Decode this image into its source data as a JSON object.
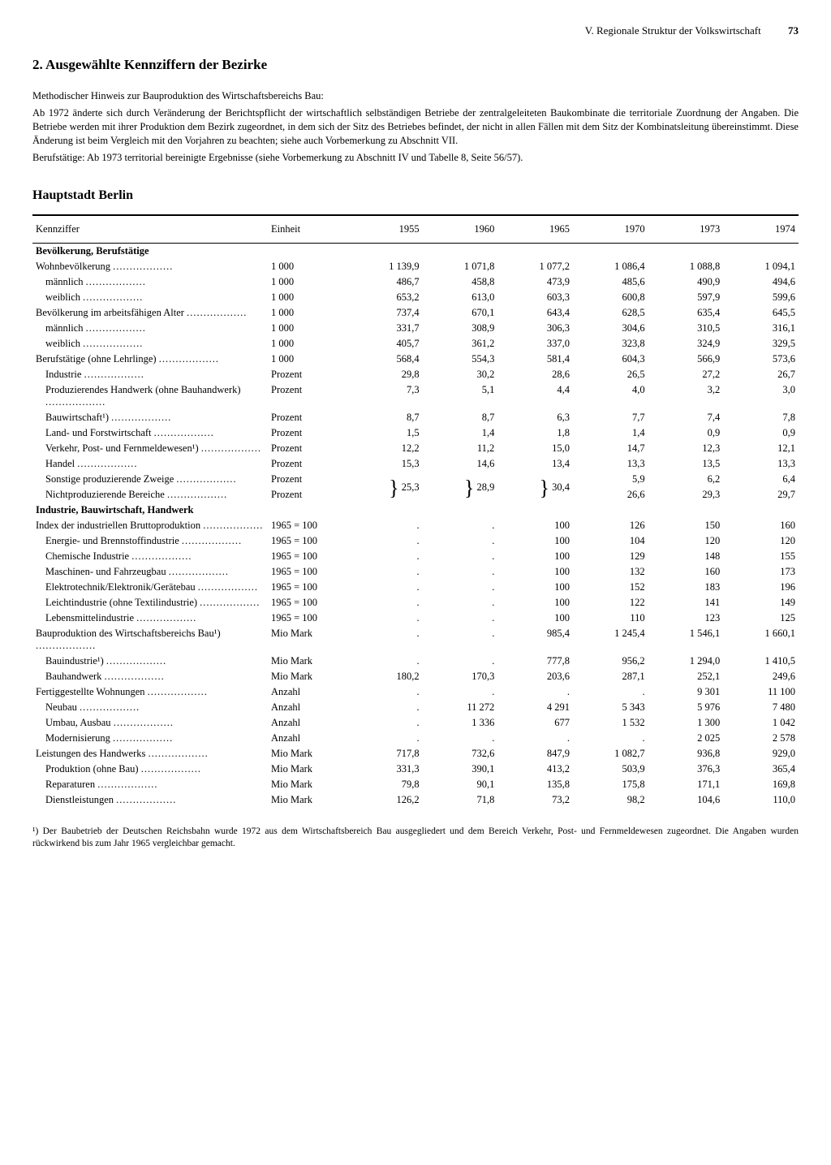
{
  "header": {
    "chapter": "V. Regionale Struktur der Volkswirtschaft",
    "page": "73"
  },
  "title": "2. Ausgewählte Kennziffern der Bezirke",
  "notes": [
    "Methodischer Hinweis zur Bauproduktion des Wirtschaftsbereichs Bau:",
    "Ab 1972 änderte sich durch Veränderung der Berichtspflicht der wirtschaftlich selbständigen Betriebe der zentralgeleiteten Baukombinate die territoriale Zuordnung der Angaben. Die Betriebe werden mit ihrer Produktion dem Bezirk zugeordnet, in dem sich der Sitz des Betriebes befindet, der nicht in allen Fällen mit dem Sitz der Kombinatsleitung übereinstimmt. Diese Änderung ist beim Vergleich mit den Vorjahren zu beachten; siehe auch Vorbemerkung zu Abschnitt VII.",
    "Berufstätige: Ab 1973 territorial bereinigte Ergebnisse (siehe Vorbemerkung zu Abschnitt IV und Tabelle 8, Seite 56/57)."
  ],
  "region": "Hauptstadt Berlin",
  "columns": [
    "Kennziffer",
    "Einheit",
    "1955",
    "1960",
    "1965",
    "1970",
    "1973",
    "1974"
  ],
  "groups": [
    {
      "title": "Bevölkerung, Berufstätige",
      "rows": [
        {
          "label": "Wohnbevölkerung",
          "unit": "1 000",
          "v": [
            "1 139,9",
            "1 071,8",
            "1 077,2",
            "1 086,4",
            "1 088,8",
            "1 094,1"
          ]
        },
        {
          "label": "männlich",
          "indent": 1,
          "unit": "1 000",
          "v": [
            "486,7",
            "458,8",
            "473,9",
            "485,6",
            "490,9",
            "494,6"
          ]
        },
        {
          "label": "weiblich",
          "indent": 1,
          "unit": "1 000",
          "v": [
            "653,2",
            "613,0",
            "603,3",
            "600,8",
            "597,9",
            "599,6"
          ]
        },
        {
          "label": "Bevölkerung im arbeitsfähigen Alter",
          "gap": true,
          "unit": "1 000",
          "v": [
            "737,4",
            "670,1",
            "643,4",
            "628,5",
            "635,4",
            "645,5"
          ]
        },
        {
          "label": "männlich",
          "indent": 1,
          "unit": "1 000",
          "v": [
            "331,7",
            "308,9",
            "306,3",
            "304,6",
            "310,5",
            "316,1"
          ]
        },
        {
          "label": "weiblich",
          "indent": 1,
          "unit": "1 000",
          "v": [
            "405,7",
            "361,2",
            "337,0",
            "323,8",
            "324,9",
            "329,5"
          ]
        },
        {
          "label": "Berufstätige (ohne Lehrlinge)",
          "gap": true,
          "unit": "1 000",
          "v": [
            "568,4",
            "554,3",
            "581,4",
            "604,3",
            "566,9",
            "573,6"
          ]
        },
        {
          "label": "Industrie",
          "indent": 1,
          "unit": "Prozent",
          "v": [
            "29,8",
            "30,2",
            "28,6",
            "26,5",
            "27,2",
            "26,7"
          ]
        },
        {
          "label": "Produzierendes Handwerk (ohne Bauhandwerk)",
          "indent": 1,
          "unit": "Prozent",
          "v": [
            "7,3",
            "5,1",
            "4,4",
            "4,0",
            "3,2",
            "3,0"
          ]
        },
        {
          "label": "Bauwirtschaft¹)",
          "indent": 1,
          "unit": "Prozent",
          "v": [
            "8,7",
            "8,7",
            "6,3",
            "7,7",
            "7,4",
            "7,8"
          ]
        },
        {
          "label": "Land- und Forstwirtschaft",
          "indent": 1,
          "unit": "Prozent",
          "v": [
            "1,5",
            "1,4",
            "1,8",
            "1,4",
            "0,9",
            "0,9"
          ]
        },
        {
          "label": "Verkehr, Post- und Fernmeldewesen¹)",
          "indent": 1,
          "unit": "Prozent",
          "v": [
            "12,2",
            "11,2",
            "15,0",
            "14,7",
            "12,3",
            "12,1"
          ]
        },
        {
          "label": "Handel",
          "indent": 1,
          "unit": "Prozent",
          "v": [
            "15,3",
            "14,6",
            "13,4",
            "13,3",
            "13,5",
            "13,3"
          ]
        },
        {
          "label": "Sonstige produzierende Zweige",
          "indent": 1,
          "unit": "Prozent",
          "brace": true,
          "v": [
            "",
            "",
            "",
            "5,9",
            "6,2",
            "6,4"
          ]
        },
        {
          "label": "Nichtproduzierende Bereiche",
          "indent": 1,
          "unit": "Prozent",
          "v": [
            "",
            "",
            "",
            "26,6",
            "29,3",
            "29,7"
          ]
        }
      ],
      "brace_values": [
        "25,3",
        "28,9",
        "30,4"
      ]
    },
    {
      "title": "Industrie, Bauwirtschaft, Handwerk",
      "biggap": true,
      "rows": [
        {
          "label": "Index der industriellen Bruttoproduktion",
          "unit": "1965 = 100",
          "v": [
            ".",
            ".",
            "100",
            "126",
            "150",
            "160"
          ]
        },
        {
          "label": "Energie- und Brennstoffindustrie",
          "indent": 1,
          "unit": "1965 = 100",
          "v": [
            ".",
            ".",
            "100",
            "104",
            "120",
            "120"
          ]
        },
        {
          "label": "Chemische Industrie",
          "indent": 1,
          "unit": "1965 = 100",
          "v": [
            ".",
            ".",
            "100",
            "129",
            "148",
            "155"
          ]
        },
        {
          "label": "Maschinen- und Fahrzeugbau",
          "indent": 1,
          "unit": "1965 = 100",
          "v": [
            ".",
            ".",
            "100",
            "132",
            "160",
            "173"
          ]
        },
        {
          "label": "Elektrotechnik/Elektronik/Gerätebau",
          "indent": 1,
          "unit": "1965 = 100",
          "v": [
            ".",
            ".",
            "100",
            "152",
            "183",
            "196"
          ]
        },
        {
          "label": "Leichtindustrie (ohne Textilindustrie)",
          "indent": 1,
          "unit": "1965 = 100",
          "v": [
            ".",
            ".",
            "100",
            "122",
            "141",
            "149"
          ]
        },
        {
          "label": "Lebensmittelindustrie",
          "indent": 1,
          "unit": "1965 = 100",
          "v": [
            ".",
            ".",
            "100",
            "110",
            "123",
            "125"
          ]
        },
        {
          "label": "Bauproduktion des Wirtschaftsbereichs Bau¹)",
          "gap": true,
          "unit": "Mio Mark",
          "v": [
            ".",
            ".",
            "985,4",
            "1 245,4",
            "1 546,1",
            "1 660,1"
          ]
        },
        {
          "label": "Bauindustrie¹)",
          "indent": 1,
          "unit": "Mio Mark",
          "v": [
            ".",
            ".",
            "777,8",
            "956,2",
            "1 294,0",
            "1 410,5"
          ]
        },
        {
          "label": "Bauhandwerk",
          "indent": 1,
          "unit": "Mio Mark",
          "v": [
            "180,2",
            "170,3",
            "203,6",
            "287,1",
            "252,1",
            "249,6"
          ]
        },
        {
          "label": "Fertiggestellte Wohnungen",
          "gap": true,
          "unit": "Anzahl",
          "v": [
            ".",
            ".",
            ".",
            ".",
            "9 301",
            "11 100"
          ]
        },
        {
          "label": "Neubau",
          "indent": 1,
          "unit": "Anzahl",
          "v": [
            ".",
            "11 272",
            "4 291",
            "5 343",
            "5 976",
            "7 480"
          ]
        },
        {
          "label": "Umbau, Ausbau",
          "indent": 1,
          "unit": "Anzahl",
          "v": [
            ".",
            "1 336",
            "677",
            "1 532",
            "1 300",
            "1 042"
          ]
        },
        {
          "label": "Modernisierung",
          "indent": 1,
          "unit": "Anzahl",
          "v": [
            ".",
            ".",
            ".",
            ".",
            "2 025",
            "2 578"
          ]
        },
        {
          "label": "Leistungen des Handwerks",
          "gap": true,
          "unit": "Mio Mark",
          "v": [
            "717,8",
            "732,6",
            "847,9",
            "1 082,7",
            "936,8",
            "929,0"
          ]
        },
        {
          "label": "Produktion (ohne Bau)",
          "indent": 1,
          "unit": "Mio Mark",
          "v": [
            "331,3",
            "390,1",
            "413,2",
            "503,9",
            "376,3",
            "365,4"
          ]
        },
        {
          "label": "Reparaturen",
          "indent": 1,
          "unit": "Mio Mark",
          "v": [
            "79,8",
            "90,1",
            "135,8",
            "175,8",
            "171,1",
            "169,8"
          ]
        },
        {
          "label": "Dienstleistungen",
          "indent": 1,
          "unit": "Mio Mark",
          "v": [
            "126,2",
            "71,8",
            "73,2",
            "98,2",
            "104,6",
            "110,0"
          ]
        }
      ]
    }
  ],
  "footnote": "¹) Der Baubetrieb der Deutschen Reichsbahn wurde 1972 aus dem Wirtschaftsbereich Bau ausgegliedert und dem Bereich Verkehr, Post- und Fernmeldewesen zugeordnet. Die Angaben wurden rückwirkend bis zum Jahr 1965 vergleichbar gemacht."
}
